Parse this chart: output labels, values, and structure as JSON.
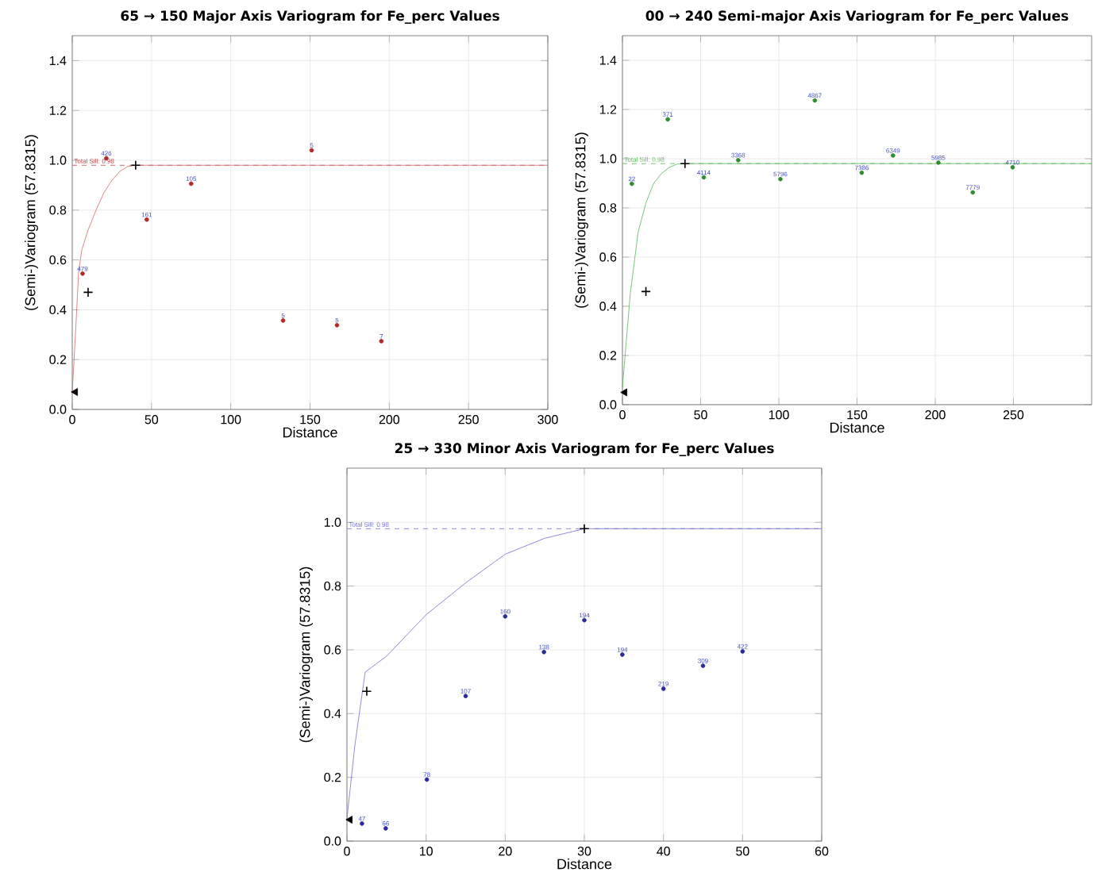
{
  "chart_data": [
    {
      "type": "scatter",
      "title": "65 → 150 Major Axis Variogram for Fe_perc Values",
      "xlabel": "Distance",
      "ylabel": "(Semi-)Variogram (57.8315)",
      "xlim": [
        0,
        300
      ],
      "ylim": [
        0,
        1.5
      ],
      "xticks": [
        0,
        50,
        100,
        150,
        200,
        250,
        300
      ],
      "yticks": [
        {
          "value": 0,
          "label": "0.0"
        },
        {
          "value": 0.2,
          "label": "0.2"
        },
        {
          "value": 0.4,
          "label": "0.4"
        },
        {
          "value": 0.6,
          "label": "0.6"
        },
        {
          "value": 0.8,
          "label": "0.8"
        },
        {
          "value": 1.0,
          "label": "1.0"
        },
        {
          "value": 1.2,
          "label": "1.2"
        },
        {
          "value": 1.4,
          "label": "1.4"
        }
      ],
      "grid": true,
      "series": [
        {
          "type": "line",
          "color": "#d46a6a",
          "marker": "none",
          "x": [
            0,
            2,
            4,
            6,
            10,
            15,
            20,
            25,
            30,
            35,
            40,
            300
          ],
          "values": [
            0.07,
            0.3,
            0.55,
            0.64,
            0.72,
            0.8,
            0.87,
            0.92,
            0.955,
            0.975,
            0.98,
            0.98
          ]
        },
        {
          "color": "#b02a2a",
          "marker": "circle",
          "x": [
            6.5,
            21.5,
            47,
            75,
            133,
            151,
            167,
            195
          ],
          "values": [
            0.545,
            1.008,
            0.762,
            0.906,
            0.357,
            1.04,
            0.338,
            0.274
          ]
        },
        {
          "color": "#000000",
          "marker": "cross",
          "x": [
            10,
            40
          ],
          "values": [
            0.47,
            0.98
          ]
        },
        {
          "color": "#000000",
          "marker": "triangle",
          "x": [
            2
          ],
          "values": [
            0.07
          ]
        }
      ],
      "annotations": [
        {
          "text": "479",
          "x": 6.5,
          "y": 0.545
        },
        {
          "text": "426",
          "x": 21.5,
          "y": 1.008
        },
        {
          "text": "161",
          "x": 47,
          "y": 0.762
        },
        {
          "text": "105",
          "x": 75,
          "y": 0.906
        },
        {
          "text": "5",
          "x": 133,
          "y": 0.357
        },
        {
          "text": "5",
          "x": 151,
          "y": 1.04
        },
        {
          "text": "5",
          "x": 167,
          "y": 0.338
        },
        {
          "text": "7",
          "x": 195,
          "y": 0.274
        }
      ],
      "ref_lines": [
        {
          "axis": "y",
          "value": 0.98,
          "label": "Total Sill: 0.98",
          "color": "#c04848",
          "line_style": "dashed"
        }
      ]
    },
    {
      "type": "scatter",
      "title": "00 → 240 Semi-major Axis Variogram for Fe_perc Values",
      "xlabel": "Distance",
      "ylabel": "(Semi-)Variogram (57.8315)",
      "xlim": [
        0,
        300
      ],
      "ylim": [
        0,
        1.5
      ],
      "xticks": [
        0,
        50,
        100,
        150,
        200,
        250
      ],
      "yticks": [
        {
          "value": 0,
          "label": "0.0"
        },
        {
          "value": 0.2,
          "label": "0.2"
        },
        {
          "value": 0.4,
          "label": "0.4"
        },
        {
          "value": 0.6,
          "label": "0.6"
        },
        {
          "value": 0.8,
          "label": "0.8"
        },
        {
          "value": 1.0,
          "label": "1.0"
        },
        {
          "value": 1.2,
          "label": "1.2"
        },
        {
          "value": 1.4,
          "label": "1.4"
        }
      ],
      "grid": true,
      "series": [
        {
          "type": "line",
          "color": "#5cb85c",
          "marker": "none",
          "x": [
            0,
            5,
            10,
            15,
            20,
            25,
            30,
            35,
            40,
            300
          ],
          "values": [
            0.07,
            0.45,
            0.7,
            0.82,
            0.9,
            0.94,
            0.965,
            0.978,
            0.98,
            0.98
          ]
        },
        {
          "color": "#2e8b2e",
          "marker": "circle",
          "x": [
            6,
            29,
            52,
            74,
            101,
            123,
            153,
            173,
            202,
            224,
            249.5
          ],
          "values": [
            0.898,
            1.16,
            0.924,
            0.994,
            0.917,
            1.237,
            0.943,
            1.013,
            0.984,
            0.863,
            0.965
          ]
        },
        {
          "color": "#000000",
          "marker": "cross",
          "x": [
            15,
            40
          ],
          "values": [
            0.46,
            0.98
          ]
        },
        {
          "color": "#000000",
          "marker": "triangle",
          "x": [
            1.5
          ],
          "values": [
            0.05
          ]
        }
      ],
      "annotations": [
        {
          "text": "22",
          "x": 6,
          "y": 0.898
        },
        {
          "text": "371",
          "x": 29,
          "y": 1.16
        },
        {
          "text": "4114",
          "x": 52,
          "y": 0.924
        },
        {
          "text": "3368",
          "x": 74,
          "y": 0.994
        },
        {
          "text": "5796",
          "x": 101,
          "y": 0.917
        },
        {
          "text": "4867",
          "x": 123,
          "y": 1.237
        },
        {
          "text": "7386",
          "x": 153,
          "y": 0.943
        },
        {
          "text": "6349",
          "x": 173,
          "y": 1.013
        },
        {
          "text": "5985",
          "x": 202,
          "y": 0.984
        },
        {
          "text": "7779",
          "x": 224,
          "y": 0.863
        },
        {
          "text": "4710",
          "x": 249.5,
          "y": 0.965
        }
      ],
      "ref_lines": [
        {
          "axis": "y",
          "value": 0.98,
          "label": "Total Sill: 0.98",
          "color": "#5cb85c",
          "line_style": "dashed"
        }
      ]
    },
    {
      "type": "scatter",
      "title": "25 → 330 Minor Axis Variogram for Fe_perc Values",
      "xlabel": "Distance",
      "ylabel": "(Semi-)Variogram (57.8315)",
      "xlim": [
        0,
        60
      ],
      "ylim": [
        0,
        1.17
      ],
      "xticks": [
        0,
        10,
        20,
        30,
        40,
        50,
        60
      ],
      "yticks": [
        {
          "value": 0,
          "label": "0.0"
        },
        {
          "value": 0.2,
          "label": "0.2"
        },
        {
          "value": 0.4,
          "label": "0.4"
        },
        {
          "value": 0.6,
          "label": "0.6"
        },
        {
          "value": 0.8,
          "label": "0.8"
        },
        {
          "value": 1.0,
          "label": "1.0"
        }
      ],
      "grid": true,
      "series": [
        {
          "type": "line",
          "color": "#7070d0",
          "marker": "none",
          "x": [
            0,
            1,
            2.3,
            5,
            10,
            15,
            20,
            25,
            30,
            60
          ],
          "values": [
            0.07,
            0.3,
            0.53,
            0.58,
            0.71,
            0.81,
            0.9,
            0.95,
            0.98,
            0.98
          ]
        },
        {
          "color": "#2a2a9a",
          "marker": "circle",
          "x": [
            1.9,
            4.9,
            10.1,
            15,
            20,
            24.9,
            30,
            34.8,
            40,
            45,
            50
          ],
          "values": [
            0.055,
            0.04,
            0.193,
            0.455,
            0.705,
            0.593,
            0.693,
            0.585,
            0.478,
            0.55,
            0.595
          ]
        },
        {
          "color": "#000000",
          "marker": "cross",
          "x": [
            2.5,
            30
          ],
          "values": [
            0.47,
            0.98
          ]
        },
        {
          "color": "#000000",
          "marker": "triangle",
          "x": [
            0.4
          ],
          "values": [
            0.067
          ]
        }
      ],
      "annotations": [
        {
          "text": "47",
          "x": 1.9,
          "y": 0.055
        },
        {
          "text": "66",
          "x": 4.9,
          "y": 0.04
        },
        {
          "text": "78",
          "x": 10.1,
          "y": 0.193
        },
        {
          "text": "107",
          "x": 15,
          "y": 0.455
        },
        {
          "text": "160",
          "x": 20,
          "y": 0.705
        },
        {
          "text": "138",
          "x": 24.9,
          "y": 0.593
        },
        {
          "text": "194",
          "x": 30,
          "y": 0.693
        },
        {
          "text": "194",
          "x": 34.8,
          "y": 0.585
        },
        {
          "text": "219",
          "x": 40,
          "y": 0.478
        },
        {
          "text": "309",
          "x": 45,
          "y": 0.55
        },
        {
          "text": "422",
          "x": 50,
          "y": 0.595
        }
      ],
      "ref_lines": [
        {
          "axis": "y",
          "value": 0.98,
          "label": "Total Sill: 0.98",
          "color": "#7070d0",
          "line_style": "dashed"
        }
      ]
    }
  ]
}
